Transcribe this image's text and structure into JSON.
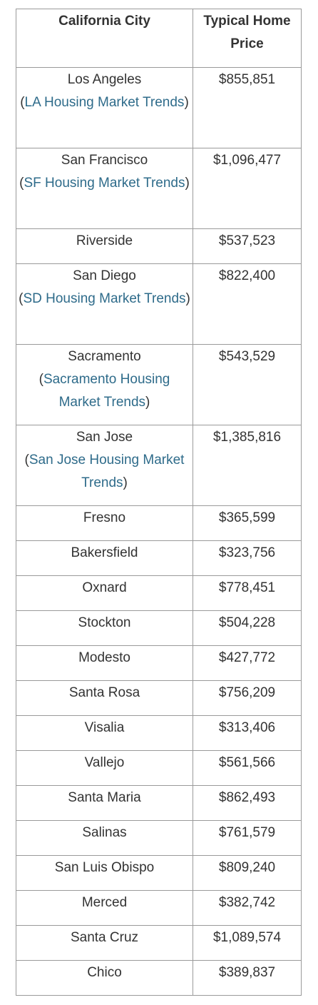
{
  "table": {
    "headers": {
      "city": "California City",
      "price": "Typical Home Price"
    },
    "rows": [
      {
        "city": "Los Angeles",
        "link": "LA Housing Market Trends",
        "price": "$855,851"
      },
      {
        "city": "San Francisco",
        "link": "SF Housing Market Trends",
        "price": "$1,096,477"
      },
      {
        "city": "Riverside",
        "price": "$537,523"
      },
      {
        "city": "San Diego",
        "link": "SD Housing Market Trends",
        "price": "$822,400"
      },
      {
        "city": "Sacramento",
        "link": "Sacramento Housing Market Trends",
        "price": "$543,529"
      },
      {
        "city": "San Jose",
        "link": "San Jose Housing Market Trends",
        "price": "$1,385,816"
      },
      {
        "city": "Fresno",
        "price": "$365,599"
      },
      {
        "city": "Bakersfield",
        "price": "$323,756"
      },
      {
        "city": "Oxnard",
        "price": "$778,451"
      },
      {
        "city": "Stockton",
        "price": "$504,228"
      },
      {
        "city": "Modesto",
        "price": "$427,772"
      },
      {
        "city": "Santa Rosa",
        "price": "$756,209"
      },
      {
        "city": "Visalia",
        "price": "$313,406"
      },
      {
        "city": "Vallejo",
        "price": "$561,566"
      },
      {
        "city": "Santa Maria",
        "price": "$862,493"
      },
      {
        "city": "Salinas",
        "price": "$761,579"
      },
      {
        "city": "San Luis Obispo",
        "price": "$809,240"
      },
      {
        "city": "Merced",
        "price": "$382,742"
      },
      {
        "city": "Santa Cruz",
        "price": "$1,089,574"
      },
      {
        "city": "Chico",
        "price": "$389,837"
      }
    ]
  }
}
